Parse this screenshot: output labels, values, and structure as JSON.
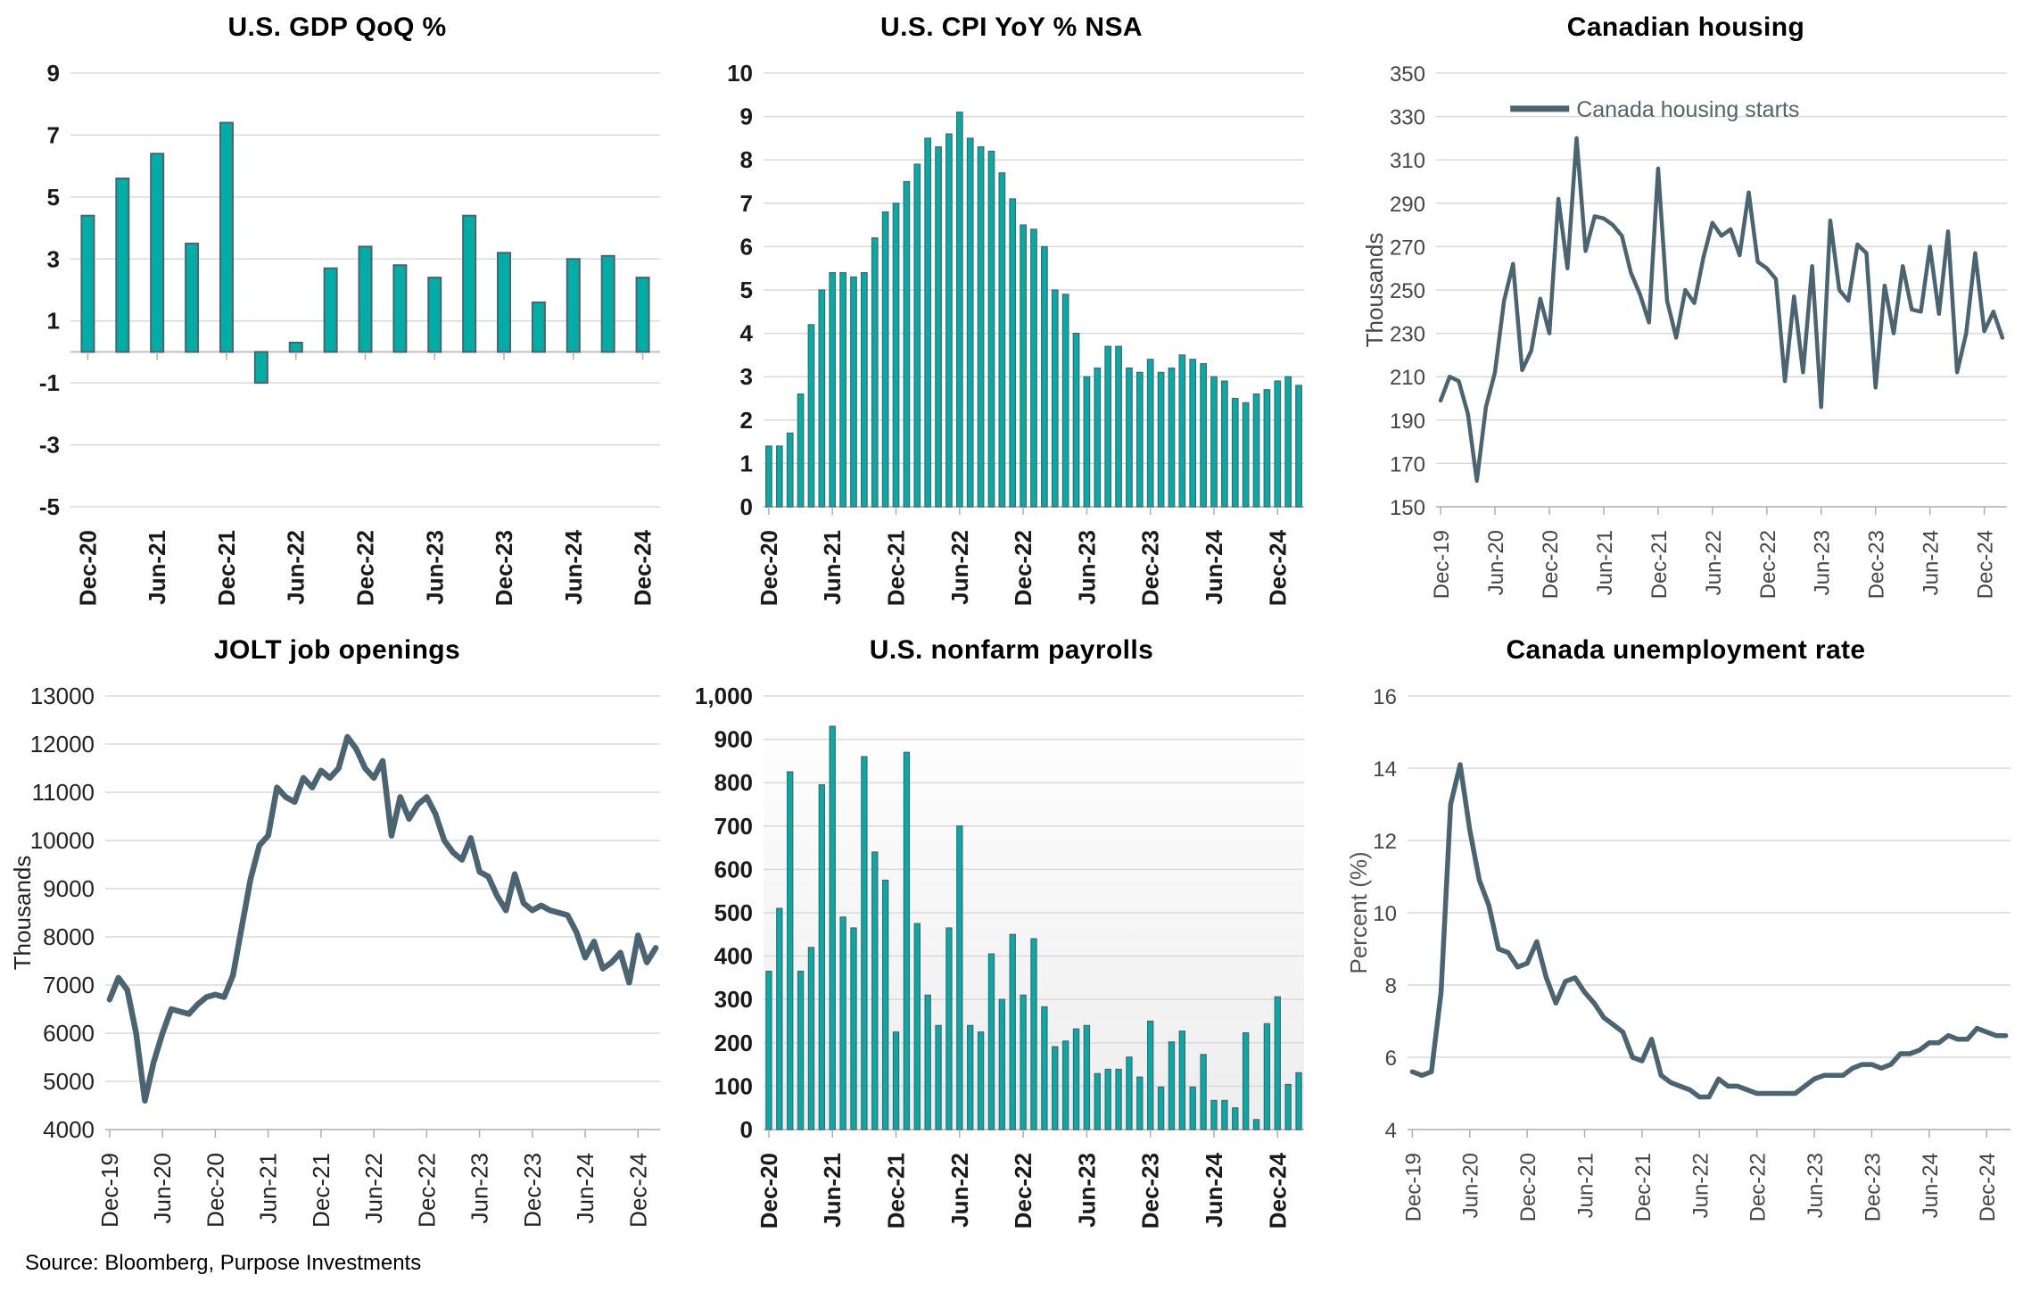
{
  "page": {
    "source_note": "Source: Bloomberg, Purpose Investments"
  },
  "colors": {
    "bar_fill": "#00AEA6",
    "bar_stroke": "#4E6170",
    "line": "#4A6472",
    "grid": "#D9D9D9",
    "axis": "#C2C2C2",
    "tick": "#AFAFAF",
    "legend_text": "#53646E"
  },
  "chart_data": [
    {
      "id": "us-gdp-qoq",
      "type": "bar",
      "title": "U.S. GDP QoQ %",
      "ylim": [
        -5,
        9
      ],
      "y_step": 2,
      "x_tick_every": 2,
      "categories": [
        "Dec-20",
        "Mar-21",
        "Jun-21",
        "Sep-21",
        "Dec-21",
        "Mar-22",
        "Jun-22",
        "Sep-22",
        "Dec-22",
        "Mar-23",
        "Jun-23",
        "Sep-23",
        "Dec-23",
        "Mar-24",
        "Jun-24",
        "Sep-24",
        "Dec-24"
      ],
      "values": [
        4.4,
        5.6,
        6.4,
        3.5,
        7.4,
        -1.0,
        0.3,
        2.7,
        3.4,
        2.8,
        2.4,
        4.4,
        3.2,
        1.6,
        3.0,
        3.1,
        2.4
      ]
    },
    {
      "id": "us-cpi-yoy",
      "type": "bar",
      "title": "U.S. CPI YoY % NSA",
      "ylim": [
        0,
        10
      ],
      "y_step": 1,
      "x_tick_every": 6,
      "categories": [
        "Dec-20",
        "Jan-21",
        "Feb-21",
        "Mar-21",
        "Apr-21",
        "May-21",
        "Jun-21",
        "Jul-21",
        "Aug-21",
        "Sep-21",
        "Oct-21",
        "Nov-21",
        "Dec-21",
        "Jan-22",
        "Feb-22",
        "Mar-22",
        "Apr-22",
        "May-22",
        "Jun-22",
        "Jul-22",
        "Aug-22",
        "Sep-22",
        "Oct-22",
        "Nov-22",
        "Dec-22",
        "Jan-23",
        "Feb-23",
        "Mar-23",
        "Apr-23",
        "May-23",
        "Jun-23",
        "Jul-23",
        "Aug-23",
        "Sep-23",
        "Oct-23",
        "Nov-23",
        "Dec-23",
        "Jan-24",
        "Feb-24",
        "Mar-24",
        "Apr-24",
        "May-24",
        "Jun-24",
        "Jul-24",
        "Aug-24",
        "Sep-24",
        "Oct-24",
        "Nov-24",
        "Dec-24",
        "Jan-25",
        "Feb-25"
      ],
      "values": [
        1.4,
        1.4,
        1.7,
        2.6,
        4.2,
        5.0,
        5.4,
        5.4,
        5.3,
        5.4,
        6.2,
        6.8,
        7.0,
        7.5,
        7.9,
        8.5,
        8.3,
        8.6,
        9.1,
        8.5,
        8.3,
        8.2,
        7.7,
        7.1,
        6.5,
        6.4,
        6.0,
        5.0,
        4.9,
        4.0,
        3.0,
        3.2,
        3.7,
        3.7,
        3.2,
        3.1,
        3.4,
        3.1,
        3.2,
        3.5,
        3.4,
        3.3,
        3.0,
        2.9,
        2.5,
        2.4,
        2.6,
        2.7,
        2.9,
        3.0,
        2.8
      ]
    },
    {
      "id": "canadian-housing",
      "type": "line",
      "title": "Canadian housing",
      "ylabel": "Thousands",
      "legend": "Canada housing starts",
      "ylim": [
        150,
        350
      ],
      "y_step": 20,
      "x_tick_every": 6,
      "categories": [
        "Dec-19",
        "Jan-20",
        "Feb-20",
        "Mar-20",
        "Apr-20",
        "May-20",
        "Jun-20",
        "Jul-20",
        "Aug-20",
        "Sep-20",
        "Oct-20",
        "Nov-20",
        "Dec-20",
        "Jan-21",
        "Feb-21",
        "Mar-21",
        "Apr-21",
        "May-21",
        "Jun-21",
        "Jul-21",
        "Aug-21",
        "Sep-21",
        "Oct-21",
        "Nov-21",
        "Dec-21",
        "Jan-22",
        "Feb-22",
        "Mar-22",
        "Apr-22",
        "May-22",
        "Jun-22",
        "Jul-22",
        "Aug-22",
        "Sep-22",
        "Oct-22",
        "Nov-22",
        "Dec-22",
        "Jan-23",
        "Feb-23",
        "Mar-23",
        "Apr-23",
        "May-23",
        "Jun-23",
        "Jul-23",
        "Aug-23",
        "Sep-23",
        "Oct-23",
        "Nov-23",
        "Dec-23",
        "Jan-24",
        "Feb-24",
        "Mar-24",
        "Apr-24",
        "May-24",
        "Jun-24",
        "Jul-24",
        "Aug-24",
        "Sep-24",
        "Oct-24",
        "Nov-24",
        "Dec-24",
        "Jan-25",
        "Feb-25"
      ],
      "values": [
        199,
        210,
        208,
        193,
        162,
        196,
        212,
        245,
        262,
        213,
        222,
        246,
        230,
        292,
        260,
        320,
        268,
        284,
        283,
        280,
        275,
        258,
        248,
        235,
        306,
        245,
        228,
        250,
        244,
        265,
        281,
        275,
        278,
        266,
        295,
        263,
        260,
        255,
        208,
        247,
        212,
        261,
        196,
        282,
        250,
        245,
        271,
        267,
        205,
        252,
        230,
        261,
        241,
        240,
        270,
        239,
        277,
        212,
        230,
        267,
        231,
        240,
        228
      ]
    },
    {
      "id": "jolt-job-openings",
      "type": "line",
      "title": "JOLT job openings",
      "ylabel": "Thousands",
      "ylim": [
        4000,
        13000
      ],
      "y_step": 1000,
      "x_tick_every": 6,
      "categories": [
        "Dec-19",
        "Jan-20",
        "Feb-20",
        "Mar-20",
        "Apr-20",
        "May-20",
        "Jun-20",
        "Jul-20",
        "Aug-20",
        "Sep-20",
        "Oct-20",
        "Nov-20",
        "Dec-20",
        "Jan-21",
        "Feb-21",
        "Mar-21",
        "Apr-21",
        "May-21",
        "Jun-21",
        "Jul-21",
        "Aug-21",
        "Sep-21",
        "Oct-21",
        "Nov-21",
        "Dec-21",
        "Jan-22",
        "Feb-22",
        "Mar-22",
        "Apr-22",
        "May-22",
        "Jun-22",
        "Jul-22",
        "Aug-22",
        "Sep-22",
        "Oct-22",
        "Nov-22",
        "Dec-22",
        "Jan-23",
        "Feb-23",
        "Mar-23",
        "Apr-23",
        "May-23",
        "Jun-23",
        "Jul-23",
        "Aug-23",
        "Sep-23",
        "Oct-23",
        "Nov-23",
        "Dec-23",
        "Jan-24",
        "Feb-24",
        "Mar-24",
        "Apr-24",
        "May-24",
        "Jun-24",
        "Jul-24",
        "Aug-24",
        "Sep-24",
        "Oct-24",
        "Nov-24",
        "Dec-24",
        "Jan-25",
        "Feb-25"
      ],
      "values": [
        6700,
        7150,
        6900,
        6000,
        4600,
        5400,
        6000,
        6500,
        6450,
        6400,
        6600,
        6750,
        6800,
        6750,
        7200,
        8200,
        9200,
        9900,
        10100,
        11100,
        10900,
        10800,
        11300,
        11100,
        11450,
        11300,
        11500,
        12150,
        11900,
        11500,
        11300,
        11650,
        10100,
        10900,
        10450,
        10750,
        10900,
        10550,
        10000,
        9750,
        9600,
        10050,
        9350,
        9250,
        8850,
        8550,
        9300,
        8700,
        8550,
        8650,
        8550,
        8500,
        8450,
        8100,
        7570,
        7900,
        7340,
        7470,
        7670,
        7050,
        8030,
        7470,
        7770
      ]
    },
    {
      "id": "us-nonfarm-payrolls",
      "type": "bar",
      "title": "U.S. nonfarm payrolls",
      "ylim": [
        0,
        1000
      ],
      "y_step": 100,
      "y_comma": true,
      "x_tick_every": 6,
      "categories": [
        "Dec-20",
        "Jan-21",
        "Feb-21",
        "Mar-21",
        "Apr-21",
        "May-21",
        "Jun-21",
        "Jul-21",
        "Aug-21",
        "Sep-21",
        "Oct-21",
        "Nov-21",
        "Dec-21",
        "Jan-22",
        "Feb-22",
        "Mar-22",
        "Apr-22",
        "May-22",
        "Jun-22",
        "Jul-22",
        "Aug-22",
        "Sep-22",
        "Oct-22",
        "Nov-22",
        "Dec-22",
        "Jan-23",
        "Feb-23",
        "Mar-23",
        "Apr-23",
        "May-23",
        "Jun-23",
        "Jul-23",
        "Aug-23",
        "Sep-23",
        "Oct-23",
        "Nov-23",
        "Dec-23",
        "Jan-24",
        "Feb-24",
        "Mar-24",
        "Apr-24",
        "May-24",
        "Jun-24",
        "Jul-24",
        "Aug-24",
        "Sep-24",
        "Oct-24",
        "Nov-24",
        "Dec-24",
        "Jan-25",
        "Feb-25"
      ],
      "values": [
        365,
        510,
        825,
        365,
        420,
        795,
        930,
        490,
        465,
        860,
        640,
        575,
        225,
        870,
        475,
        310,
        240,
        465,
        700,
        240,
        225,
        405,
        300,
        450,
        310,
        440,
        283,
        191,
        204,
        232,
        240,
        129,
        139,
        139,
        167,
        121,
        250,
        98,
        202,
        227,
        98,
        173,
        67,
        67,
        50,
        223,
        23,
        244,
        306,
        104,
        131
      ]
    },
    {
      "id": "canada-unemployment-rate",
      "type": "line",
      "title": "Canada unemployment rate",
      "ylabel": "Percent (%)",
      "ylim": [
        4,
        16
      ],
      "y_step": 2,
      "x_tick_every": 6,
      "categories": [
        "Dec-19",
        "Jan-20",
        "Feb-20",
        "Mar-20",
        "Apr-20",
        "May-20",
        "Jun-20",
        "Jul-20",
        "Aug-20",
        "Sep-20",
        "Oct-20",
        "Nov-20",
        "Dec-20",
        "Jan-21",
        "Feb-21",
        "Mar-21",
        "Apr-21",
        "May-21",
        "Jun-21",
        "Jul-21",
        "Aug-21",
        "Sep-21",
        "Oct-21",
        "Nov-21",
        "Dec-21",
        "Jan-22",
        "Feb-22",
        "Mar-22",
        "Apr-22",
        "May-22",
        "Jun-22",
        "Jul-22",
        "Aug-22",
        "Sep-22",
        "Oct-22",
        "Nov-22",
        "Dec-22",
        "Jan-23",
        "Feb-23",
        "Mar-23",
        "Apr-23",
        "May-23",
        "Jun-23",
        "Jul-23",
        "Aug-23",
        "Sep-23",
        "Oct-23",
        "Nov-23",
        "Dec-23",
        "Jan-24",
        "Feb-24",
        "Mar-24",
        "Apr-24",
        "May-24",
        "Jun-24",
        "Jul-24",
        "Aug-24",
        "Sep-24",
        "Oct-24",
        "Nov-24",
        "Dec-24",
        "Jan-25",
        "Feb-25"
      ],
      "values": [
        5.6,
        5.5,
        5.6,
        7.8,
        13.0,
        14.1,
        12.3,
        10.9,
        10.2,
        9.0,
        8.9,
        8.5,
        8.6,
        9.2,
        8.2,
        7.5,
        8.1,
        8.2,
        7.8,
        7.5,
        7.1,
        6.9,
        6.7,
        6.0,
        5.9,
        6.5,
        5.5,
        5.3,
        5.2,
        5.1,
        4.9,
        4.9,
        5.4,
        5.2,
        5.2,
        5.1,
        5.0,
        5.0,
        5.0,
        5.0,
        5.0,
        5.2,
        5.4,
        5.5,
        5.5,
        5.5,
        5.7,
        5.8,
        5.8,
        5.7,
        5.8,
        6.1,
        6.1,
        6.2,
        6.4,
        6.4,
        6.6,
        6.5,
        6.5,
        6.8,
        6.7,
        6.6,
        6.6
      ]
    }
  ]
}
